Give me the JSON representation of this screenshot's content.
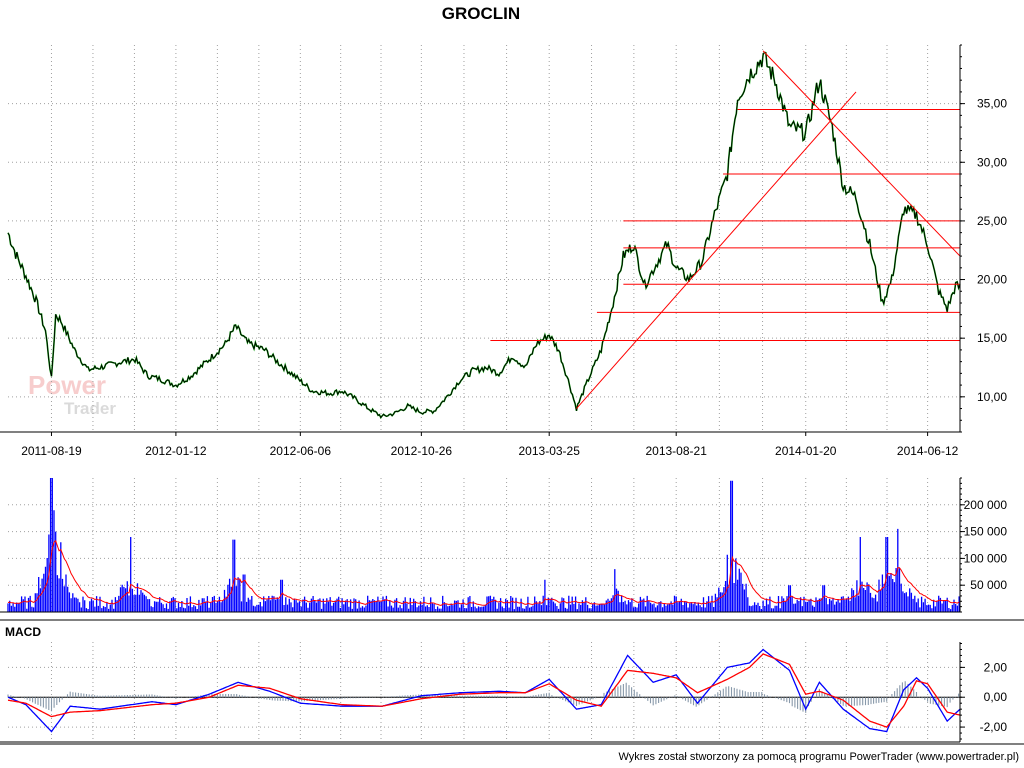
{
  "title": "GROCLIN",
  "footer": "Wykres został stworzony za pomocą programu PowerTrader (www.powertrader.pl)",
  "watermark": {
    "line1": "Power",
    "line2": "Trader"
  },
  "colors": {
    "price": "#000000",
    "price_up": "#00a000",
    "trendline": "#ff0000",
    "volume": "#0000ff",
    "volume_avg": "#ff0000",
    "macd": "#0000ff",
    "signal": "#ff0000",
    "histogram": "#8899aa",
    "grid": "#a0a0a0"
  },
  "chart_data": [
    {
      "id": "price",
      "type": "line",
      "title": "GROCLIN",
      "xlabel": "",
      "ylabel": "",
      "x_ticks": [
        "2011-08-19",
        "2012-01-12",
        "2012-06-06",
        "2012-10-26",
        "2013-03-25",
        "2013-08-21",
        "2014-01-20",
        "2014-06-12"
      ],
      "y_ticks": [
        "10,00",
        "15,00",
        "20,00",
        "25,00",
        "30,00",
        "35,00"
      ],
      "ylim": [
        7,
        40
      ],
      "x_range": [
        "2011-06-29",
        "2014-07-20"
      ],
      "grid": true,
      "points": [
        [
          "2011-06-29",
          24.0
        ],
        [
          "2011-07-08",
          22.2
        ],
        [
          "2011-07-20",
          20.3
        ],
        [
          "2011-08-01",
          18.2
        ],
        [
          "2011-08-12",
          15.6
        ],
        [
          "2011-08-19",
          11.5
        ],
        [
          "2011-08-24",
          17.0
        ],
        [
          "2011-08-30",
          16.5
        ],
        [
          "2011-09-15",
          14.0
        ],
        [
          "2011-10-01",
          12.3
        ],
        [
          "2011-10-20",
          12.6
        ],
        [
          "2011-11-10",
          13.0
        ],
        [
          "2011-11-25",
          13.2
        ],
        [
          "2011-12-10",
          11.8
        ],
        [
          "2011-12-25",
          11.5
        ],
        [
          "2012-01-12",
          11.0
        ],
        [
          "2012-01-30",
          11.8
        ],
        [
          "2012-02-20",
          13.2
        ],
        [
          "2012-03-10",
          14.5
        ],
        [
          "2012-03-22",
          16.0
        ],
        [
          "2012-04-05",
          14.6
        ],
        [
          "2012-04-25",
          14.0
        ],
        [
          "2012-05-10",
          13.0
        ],
        [
          "2012-05-30",
          11.8
        ],
        [
          "2012-06-20",
          10.5
        ],
        [
          "2012-07-10",
          10.3
        ],
        [
          "2012-07-25",
          10.5
        ],
        [
          "2012-08-10",
          9.8
        ],
        [
          "2012-08-25",
          9.0
        ],
        [
          "2012-09-10",
          8.3
        ],
        [
          "2012-09-25",
          8.6
        ],
        [
          "2012-10-10",
          9.2
        ],
        [
          "2012-10-26",
          8.7
        ],
        [
          "2012-11-10",
          8.8
        ],
        [
          "2012-11-25",
          10.0
        ],
        [
          "2012-12-10",
          11.4
        ],
        [
          "2012-12-25",
          12.2
        ],
        [
          "2013-01-10",
          12.5
        ],
        [
          "2013-01-25",
          12.0
        ],
        [
          "2013-02-10",
          13.5
        ],
        [
          "2013-02-25",
          12.5
        ],
        [
          "2013-03-10",
          14.5
        ],
        [
          "2013-03-25",
          15.3
        ],
        [
          "2013-04-05",
          14.0
        ],
        [
          "2013-04-18",
          11.0
        ],
        [
          "2013-04-26",
          9.0
        ],
        [
          "2013-05-10",
          11.5
        ],
        [
          "2013-05-25",
          14.0
        ],
        [
          "2013-06-08",
          18.0
        ],
        [
          "2013-06-20",
          22.0
        ],
        [
          "2013-07-02",
          23.0
        ],
        [
          "2013-07-15",
          19.5
        ],
        [
          "2013-07-30",
          21.5
        ],
        [
          "2013-08-10",
          23.0
        ],
        [
          "2013-08-21",
          21.0
        ],
        [
          "2013-09-05",
          20.0
        ],
        [
          "2013-09-20",
          21.5
        ],
        [
          "2013-10-05",
          25.5
        ],
        [
          "2013-10-20",
          29.0
        ],
        [
          "2013-11-01",
          35.5
        ],
        [
          "2013-11-15",
          37.5
        ],
        [
          "2013-12-01",
          39.0
        ],
        [
          "2013-12-15",
          37.0
        ],
        [
          "2014-01-01",
          33.0
        ],
        [
          "2014-01-20",
          32.5
        ],
        [
          "2014-02-05",
          37.0
        ],
        [
          "2014-02-20",
          33.0
        ],
        [
          "2014-03-05",
          28.0
        ],
        [
          "2014-03-20",
          27.0
        ],
        [
          "2014-04-05",
          23.0
        ],
        [
          "2014-04-20",
          18.0
        ],
        [
          "2014-05-01",
          20.0
        ],
        [
          "2014-05-15",
          26.0
        ],
        [
          "2014-05-30",
          25.5
        ],
        [
          "2014-06-12",
          23.0
        ],
        [
          "2014-06-25",
          19.0
        ],
        [
          "2014-07-05",
          17.5
        ],
        [
          "2014-07-15",
          19.5
        ],
        [
          "2014-07-20",
          19.3
        ]
      ],
      "trendlines": [
        {
          "from": [
            "2013-04-26",
            9.0
          ],
          "to": [
            "2014-03-20",
            36.0
          ]
        },
        {
          "from": [
            "2013-12-01",
            39.5
          ],
          "to": [
            "2014-07-20",
            22.0
          ]
        }
      ],
      "horizontal_levels": [
        {
          "value": 34.5,
          "from": "2013-11-01",
          "to": "2014-07-20"
        },
        {
          "value": 29.0,
          "from": "2013-10-15",
          "to": "2014-07-20"
        },
        {
          "value": 25.0,
          "from": "2013-06-20",
          "to": "2014-07-20"
        },
        {
          "value": 22.7,
          "from": "2013-06-20",
          "to": "2014-07-20"
        },
        {
          "value": 19.6,
          "from": "2013-06-20",
          "to": "2014-07-20"
        },
        {
          "value": 17.2,
          "from": "2013-05-20",
          "to": "2014-07-20"
        },
        {
          "value": 14.8,
          "from": "2013-01-15",
          "to": "2014-07-20"
        }
      ]
    },
    {
      "id": "volume",
      "type": "bar",
      "y_ticks": [
        "50 000",
        "100 000",
        "150 000",
        "200 000"
      ],
      "ylim": [
        0,
        250000
      ],
      "spikes": [
        [
          "2011-08-19",
          250000
        ],
        [
          "2011-08-23",
          190000
        ],
        [
          "2011-08-24",
          150000
        ],
        [
          "2011-08-30",
          130000
        ],
        [
          "2011-09-05",
          70000
        ],
        [
          "2011-11-20",
          140000
        ],
        [
          "2012-03-20",
          135000
        ],
        [
          "2012-04-01",
          70000
        ],
        [
          "2012-05-15",
          60000
        ],
        [
          "2013-03-20",
          60000
        ],
        [
          "2013-06-10",
          80000
        ],
        [
          "2013-10-25",
          245000
        ],
        [
          "2013-11-01",
          60000
        ],
        [
          "2014-01-01",
          50000
        ],
        [
          "2014-02-10",
          50000
        ],
        [
          "2014-03-25",
          140000
        ],
        [
          "2014-04-25",
          140000
        ],
        [
          "2014-05-08",
          155000
        ]
      ],
      "base_level": 18000,
      "moving_average_level": 15000
    },
    {
      "id": "macd",
      "type": "line",
      "title": "MACD",
      "y_ticks": [
        "-2,00",
        "0,00",
        "2,00"
      ],
      "ylim": [
        -3,
        3.7
      ],
      "macd": [
        [
          "2011-06-29",
          0.0
        ],
        [
          "2011-07-20",
          -0.5
        ],
        [
          "2011-08-19",
          -2.3
        ],
        [
          "2011-09-10",
          -0.6
        ],
        [
          "2011-10-15",
          -0.8
        ],
        [
          "2011-12-15",
          -0.3
        ],
        [
          "2012-01-12",
          -0.5
        ],
        [
          "2012-02-20",
          0.2
        ],
        [
          "2012-03-25",
          1.0
        ],
        [
          "2012-05-01",
          0.4
        ],
        [
          "2012-06-06",
          -0.4
        ],
        [
          "2012-07-25",
          -0.6
        ],
        [
          "2012-09-10",
          -0.6
        ],
        [
          "2012-10-26",
          0.1
        ],
        [
          "2012-12-10",
          0.3
        ],
        [
          "2013-01-25",
          0.4
        ],
        [
          "2013-02-25",
          0.3
        ],
        [
          "2013-03-25",
          1.2
        ],
        [
          "2013-04-26",
          -0.8
        ],
        [
          "2013-05-25",
          -0.5
        ],
        [
          "2013-06-25",
          2.8
        ],
        [
          "2013-07-25",
          1.0
        ],
        [
          "2013-08-21",
          1.5
        ],
        [
          "2013-09-15",
          -0.4
        ],
        [
          "2013-10-20",
          2.0
        ],
        [
          "2013-11-15",
          2.3
        ],
        [
          "2013-12-01",
          3.2
        ],
        [
          "2014-01-01",
          1.8
        ],
        [
          "2014-01-20",
          -0.8
        ],
        [
          "2014-02-05",
          1.0
        ],
        [
          "2014-03-05",
          -0.8
        ],
        [
          "2014-04-05",
          -2.1
        ],
        [
          "2014-04-25",
          -2.3
        ],
        [
          "2014-05-15",
          0.5
        ],
        [
          "2014-05-30",
          1.3
        ],
        [
          "2014-06-12",
          0.6
        ],
        [
          "2014-07-05",
          -1.6
        ],
        [
          "2014-07-20",
          -0.8
        ]
      ],
      "signal": [
        [
          "2011-06-29",
          -0.2
        ],
        [
          "2011-07-20",
          -0.4
        ],
        [
          "2011-08-19",
          -1.3
        ],
        [
          "2011-09-10",
          -1.0
        ],
        [
          "2011-10-15",
          -0.9
        ],
        [
          "2011-12-15",
          -0.5
        ],
        [
          "2012-01-12",
          -0.4
        ],
        [
          "2012-02-20",
          0.0
        ],
        [
          "2012-03-25",
          0.8
        ],
        [
          "2012-05-01",
          0.6
        ],
        [
          "2012-06-06",
          -0.1
        ],
        [
          "2012-07-25",
          -0.5
        ],
        [
          "2012-09-10",
          -0.6
        ],
        [
          "2012-10-26",
          -0.1
        ],
        [
          "2012-12-10",
          0.2
        ],
        [
          "2013-01-25",
          0.3
        ],
        [
          "2013-02-25",
          0.3
        ],
        [
          "2013-03-25",
          0.9
        ],
        [
          "2013-04-26",
          -0.2
        ],
        [
          "2013-05-25",
          -0.6
        ],
        [
          "2013-06-25",
          1.8
        ],
        [
          "2013-07-25",
          1.6
        ],
        [
          "2013-08-21",
          1.3
        ],
        [
          "2013-09-15",
          0.3
        ],
        [
          "2013-10-20",
          1.2
        ],
        [
          "2013-11-15",
          2.0
        ],
        [
          "2013-12-01",
          2.9
        ],
        [
          "2014-01-01",
          2.2
        ],
        [
          "2014-01-20",
          0.2
        ],
        [
          "2014-02-05",
          0.4
        ],
        [
          "2014-03-05",
          -0.2
        ],
        [
          "2014-04-05",
          -1.6
        ],
        [
          "2014-04-25",
          -2.0
        ],
        [
          "2014-05-15",
          -0.6
        ],
        [
          "2014-05-30",
          1.1
        ],
        [
          "2014-06-12",
          0.9
        ],
        [
          "2014-07-05",
          -1.0
        ],
        [
          "2014-07-20",
          -1.2
        ]
      ]
    }
  ]
}
